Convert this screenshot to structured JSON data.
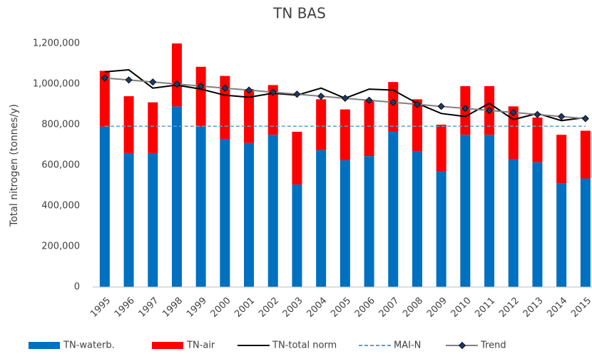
{
  "chart_data": {
    "type": "bar",
    "stacked": true,
    "title": "TN BAS",
    "y_label": "Total nitrogen (tonnes/y)",
    "categories": [
      "1995",
      "1996",
      "1997",
      "1998",
      "1999",
      "2000",
      "2001",
      "2002",
      "2003",
      "2004",
      "2005",
      "2006",
      "2007",
      "2008",
      "2009",
      "2010",
      "2011",
      "2012",
      "2013",
      "2014",
      "2015"
    ],
    "series": [
      {
        "name": "TN-waterb.",
        "type": "bar",
        "color": "#0070c0",
        "values": [
          790000,
          660000,
          660000,
          890000,
          790000,
          730000,
          710000,
          750000,
          505000,
          675000,
          625000,
          645000,
          765000,
          670000,
          570000,
          750000,
          750000,
          630000,
          615000,
          510000,
          535000
        ]
      },
      {
        "name": "TN-air",
        "type": "bar",
        "color": "#ff0000",
        "values": [
          275000,
          280000,
          250000,
          310000,
          295000,
          310000,
          265000,
          245000,
          260000,
          250000,
          250000,
          275000,
          245000,
          255000,
          230000,
          240000,
          240000,
          260000,
          220000,
          240000,
          235000
        ]
      },
      {
        "name": "TN-total norm",
        "type": "line",
        "color": "#000000",
        "values": [
          1060000,
          1070000,
          980000,
          995000,
          975000,
          945000,
          935000,
          955000,
          945000,
          980000,
          930000,
          975000,
          970000,
          905000,
          855000,
          840000,
          905000,
          825000,
          855000,
          820000,
          835000
        ]
      },
      {
        "name": "MAI-N",
        "type": "line",
        "dashed": true,
        "color": "#5b9bd5",
        "values": [
          792000,
          792000,
          792000,
          792000,
          792000,
          792000,
          792000,
          792000,
          792000,
          792000,
          792000,
          792000,
          792000,
          792000,
          792000,
          792000,
          792000,
          792000,
          792000,
          792000,
          792000
        ]
      },
      {
        "name": "Trend",
        "type": "line",
        "marker": "diamond",
        "color": "#808080",
        "marker_color": "#1f3864",
        "values": [
          1030000,
          1020000,
          1010000,
          1000000,
          990000,
          980000,
          970000,
          960000,
          950000,
          940000,
          930000,
          920000,
          910000,
          900000,
          890000,
          880000,
          870000,
          860000,
          850000,
          840000,
          830000
        ]
      }
    ],
    "ylim": [
      0,
      1200000
    ],
    "yticks": [
      0,
      {
        "value": 200000,
        "label": "200,000"
      },
      {
        "value": 400000,
        "label": "400,000"
      },
      {
        "value": 600000,
        "label": "600,000"
      },
      {
        "value": 800000,
        "label": "800,000"
      },
      {
        "value": 1000000,
        "label": "1,000,000"
      },
      {
        "value": 1200000,
        "label": "1,200,000"
      }
    ],
    "grid": false,
    "legend": "bottom"
  }
}
